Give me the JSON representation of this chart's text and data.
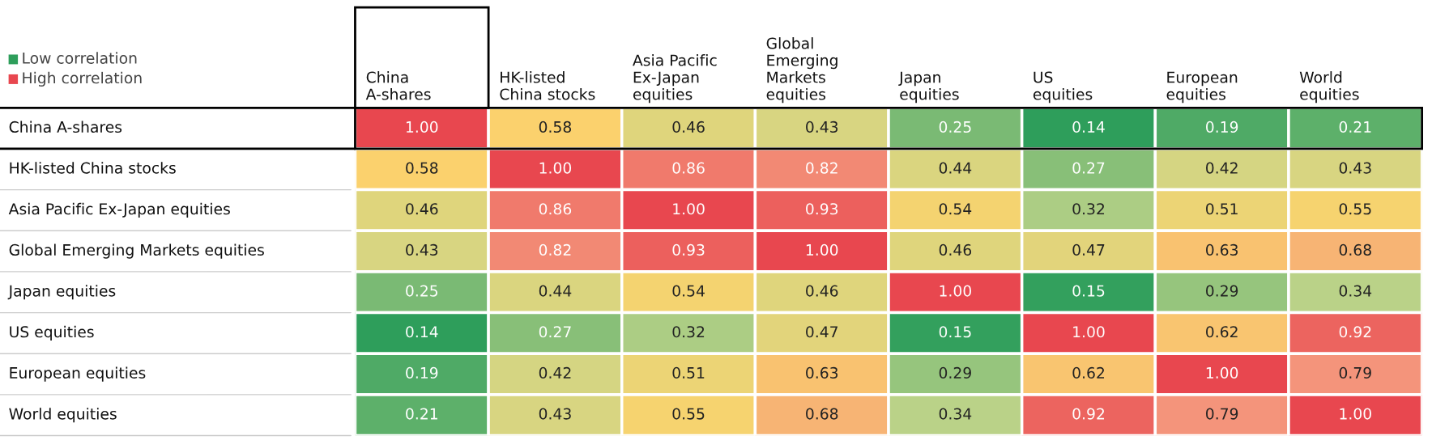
{
  "chart_data": {
    "type": "heatmap",
    "categories": [
      "China\nA-shares",
      "HK-listed\nChina stocks",
      "Asia Pacific\nEx-Japan\nequities",
      "Global\nEmerging\nMarkets\nequities",
      "Japan\nequities",
      "US\nequities",
      "European\nequities",
      "World\nequities"
    ],
    "y_categories": [
      "China A-shares",
      "HK-listed China stocks",
      "Asia Pacific Ex-Japan equities",
      "Global Emerging Markets equities",
      "Japan equities",
      "US equities",
      "European equities",
      "World equities"
    ],
    "cells": [
      [
        1.0,
        0.58,
        0.46,
        0.43,
        0.25,
        0.14,
        0.19,
        0.21
      ],
      [
        0.58,
        1.0,
        0.86,
        0.82,
        0.44,
        0.27,
        0.42,
        0.43
      ],
      [
        0.46,
        0.86,
        1.0,
        0.93,
        0.54,
        0.32,
        0.51,
        0.55
      ],
      [
        0.43,
        0.82,
        0.93,
        1.0,
        0.46,
        0.47,
        0.63,
        0.68
      ],
      [
        0.25,
        0.44,
        0.54,
        0.46,
        1.0,
        0.15,
        0.29,
        0.34
      ],
      [
        0.14,
        0.27,
        0.32,
        0.47,
        0.15,
        1.0,
        0.62,
        0.92
      ],
      [
        0.19,
        0.42,
        0.51,
        0.63,
        0.29,
        0.62,
        1.0,
        0.79
      ],
      [
        0.21,
        0.43,
        0.55,
        0.68,
        0.34,
        0.92,
        0.79,
        1.0
      ]
    ],
    "cell_labels": [
      [
        "1.00",
        "0.58",
        "0.46",
        "0.43",
        "0.25",
        "0.14",
        "0.19",
        "0.21"
      ],
      [
        "0.58",
        "1.00",
        "0.86",
        "0.82",
        "0.44",
        "0.27",
        "0.42",
        "0.43"
      ],
      [
        "0.46",
        "0.86",
        "1.00",
        "0.93",
        "0.54",
        "0.32",
        "0.51",
        "0.55"
      ],
      [
        "0.43",
        "0.82",
        "0.93",
        "1.00",
        "0.46",
        "0.47",
        "0.63",
        "0.68"
      ],
      [
        "0.25",
        "0.44",
        "0.54",
        "0.46",
        "1.00",
        "0.15",
        "0.29",
        "0.34"
      ],
      [
        "0.14",
        "0.27",
        "0.32",
        "0.47",
        "0.15",
        "1.00",
        "0.62",
        "0.92"
      ],
      [
        "0.19",
        "0.42",
        "0.51",
        "0.63",
        "0.29",
        "0.62",
        "1.00",
        "0.79"
      ],
      [
        "0.21",
        "0.43",
        "0.55",
        "0.68",
        "0.34",
        "0.92",
        "0.79",
        "1.00"
      ]
    ],
    "colors": [
      "#2e9e5b",
      "#c5d68c",
      "#fbd36c",
      "#f4967c",
      "#e8474f"
    ],
    "annotations": [
      "Low correlation",
      "High correlation"
    ]
  }
}
